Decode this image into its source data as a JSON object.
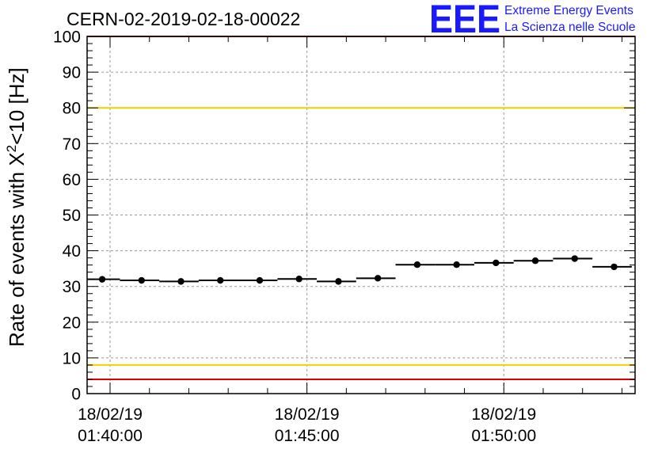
{
  "header": {
    "title": "CERN-02-2019-02-18-00022",
    "logo": "EEE",
    "logo_line1": "Extreme Energy Events",
    "logo_line2": "La Scienza nelle Scuole"
  },
  "chart_data": {
    "type": "scatter",
    "ylabel_main": "Rate of events with X",
    "ylabel_sup": "2",
    "ylabel_tail": "<10 [Hz]",
    "ylim": [
      0,
      100
    ],
    "y_ticks": [
      0,
      10,
      20,
      30,
      40,
      50,
      60,
      70,
      80,
      90,
      100
    ],
    "xlim": [
      "01:39:25",
      "01:53:20"
    ],
    "x_ticks": [
      {
        "time": "01:40:00",
        "date": "18/02/19",
        "label": "01:40:00"
      },
      {
        "time": "01:45:00",
        "date": "18/02/19",
        "label": "01:45:00"
      },
      {
        "time": "01:50:00",
        "date": "18/02/19",
        "label": "01:50:00"
      }
    ],
    "grid": true,
    "reference_lines": [
      {
        "value": 80,
        "color": "#f0d000"
      },
      {
        "value": 8,
        "color": "#f0d000"
      },
      {
        "value": 100,
        "color": "#e00000"
      },
      {
        "value": 4,
        "color": "#e00000"
      }
    ],
    "points": [
      {
        "x": "01:39:48",
        "y": 32.0,
        "x_start": "01:39:25",
        "x_end": "01:40:15"
      },
      {
        "x": "01:40:48",
        "y": 31.7,
        "x_start": "01:40:15",
        "x_end": "01:41:15"
      },
      {
        "x": "01:41:48",
        "y": 31.4,
        "x_start": "01:41:15",
        "x_end": "01:42:15"
      },
      {
        "x": "01:42:48",
        "y": 31.7,
        "x_start": "01:42:15",
        "x_end": "01:43:15"
      },
      {
        "x": "01:43:48",
        "y": 31.7,
        "x_start": "01:43:15",
        "x_end": "01:44:15"
      },
      {
        "x": "01:44:48",
        "y": 32.1,
        "x_start": "01:44:15",
        "x_end": "01:45:15"
      },
      {
        "x": "01:45:48",
        "y": 31.4,
        "x_start": "01:45:15",
        "x_end": "01:46:15"
      },
      {
        "x": "01:46:48",
        "y": 32.3,
        "x_start": "01:46:15",
        "x_end": "01:47:15"
      },
      {
        "x": "01:47:48",
        "y": 36.1,
        "x_start": "01:47:15",
        "x_end": "01:48:15"
      },
      {
        "x": "01:48:48",
        "y": 36.1,
        "x_start": "01:48:15",
        "x_end": "01:49:15"
      },
      {
        "x": "01:49:48",
        "y": 36.6,
        "x_start": "01:49:15",
        "x_end": "01:50:15"
      },
      {
        "x": "01:50:48",
        "y": 37.2,
        "x_start": "01:50:15",
        "x_end": "01:51:15"
      },
      {
        "x": "01:51:48",
        "y": 37.8,
        "x_start": "01:51:15",
        "x_end": "01:52:15"
      },
      {
        "x": "01:52:48",
        "y": 35.5,
        "x_start": "01:52:15",
        "x_end": "01:53:15"
      }
    ]
  }
}
